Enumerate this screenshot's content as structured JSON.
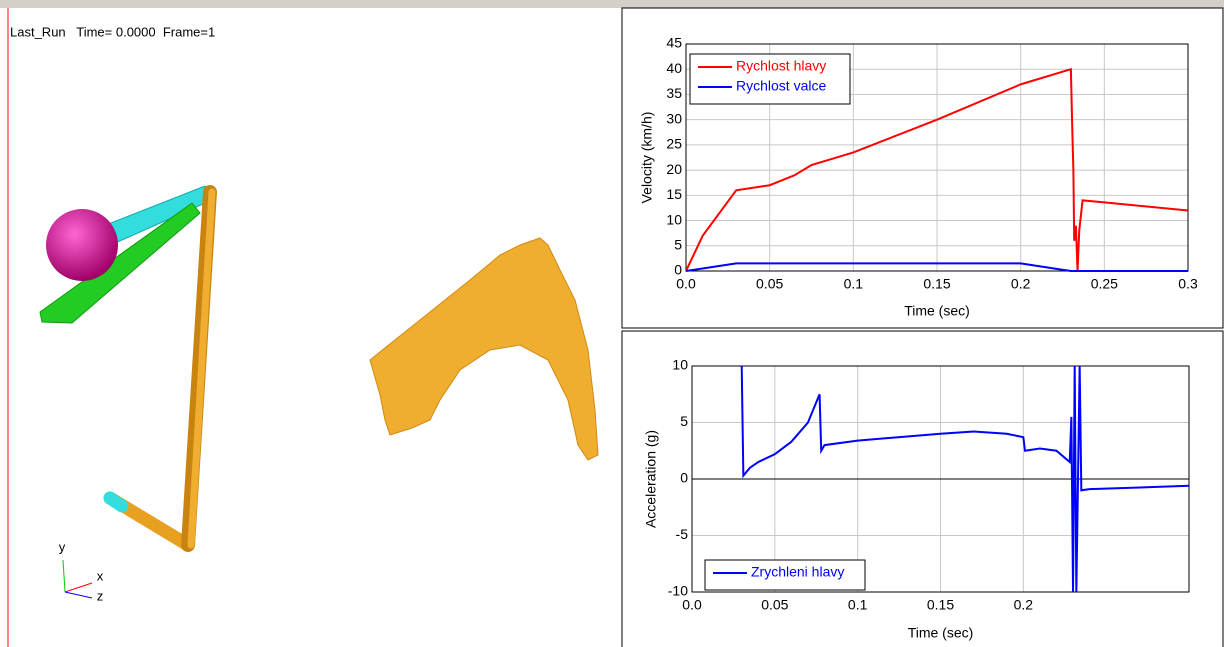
{
  "viewport": {
    "label": "Last_Run   Time= 0.0000  Frame=1",
    "axes": [
      "y",
      "x",
      "z"
    ]
  },
  "chart_data": [
    {
      "type": "line",
      "xlabel": "Time (sec)",
      "ylabel": "Velocity (km/h)",
      "xlim": [
        0,
        0.3
      ],
      "ylim": [
        0,
        45
      ],
      "xticks": [
        {
          "value": 0,
          "label": "0.0"
        },
        0.05,
        0.1,
        0.15,
        0.2,
        0.25,
        0.3
      ],
      "yticks": [
        0,
        5,
        10,
        15,
        20,
        25,
        30,
        35,
        40,
        45
      ],
      "grid": true,
      "legend": "upper left",
      "series": [
        {
          "name": "Rychlost hlavy",
          "color": "#ff0000",
          "x": [
            0,
            0.01,
            0.03,
            0.05,
            0.065,
            0.075,
            0.1,
            0.15,
            0.2,
            0.23,
            0.231,
            0.2315,
            0.232,
            0.233,
            0.234,
            0.235,
            0.237,
            0.25,
            0.3
          ],
          "values": [
            0,
            7,
            16,
            17,
            19,
            21,
            23.5,
            30,
            37,
            40,
            26,
            20,
            6,
            9,
            0,
            8,
            14,
            13.6,
            12
          ]
        },
        {
          "name": "Rychlost valce",
          "color": "#0000ff",
          "x": [
            0,
            0.03,
            0.2,
            0.22,
            0.23,
            0.3
          ],
          "values": [
            0,
            1.5,
            1.5,
            0.5,
            0,
            0
          ]
        }
      ]
    },
    {
      "type": "line",
      "xlabel": "Time (sec)",
      "ylabel": "Acceleration (g)",
      "xlim": [
        0,
        0.3
      ],
      "ylim": [
        -10,
        10
      ],
      "xticks": [
        {
          "value": 0,
          "label": "0.0"
        },
        0.05,
        0.1,
        0.15,
        0.2
      ],
      "yticks": [
        -10,
        -5,
        0,
        5,
        10
      ],
      "grid": true,
      "legend": "lower left",
      "series": [
        {
          "name": "Zrychleni hlavy",
          "color": "#0000ff",
          "x": [
            0.03,
            0.031,
            0.035,
            0.04,
            0.05,
            0.06,
            0.07,
            0.077,
            0.078,
            0.08,
            0.1,
            0.15,
            0.17,
            0.19,
            0.2,
            0.201,
            0.21,
            0.22,
            0.228,
            0.229,
            0.23,
            0.231,
            0.232,
            0.234,
            0.235,
            0.24,
            0.3
          ],
          "values": [
            10,
            0.3,
            1,
            1.5,
            2.2,
            3.3,
            5,
            7.5,
            2.5,
            3,
            3.4,
            4,
            4.2,
            4,
            3.7,
            2.5,
            2.7,
            2.5,
            1.5,
            5.5,
            -10,
            10,
            -10,
            10,
            -1,
            -0.9,
            -0.6
          ]
        }
      ]
    }
  ]
}
